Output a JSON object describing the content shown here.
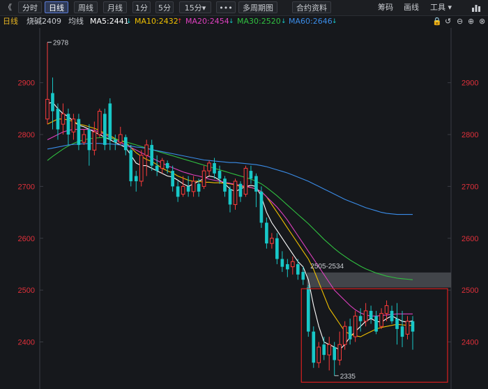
{
  "toolbar": {
    "collapse": "《",
    "tabs": [
      "分时",
      "日线",
      "周线",
      "月线",
      "1分",
      "5分",
      "15分▾"
    ],
    "active_tab": "日线",
    "more": "•••",
    "multi_period": "多周期图",
    "contract_info": "合约资料",
    "chips": "筹码",
    "draw": "画线",
    "tools": "工具 ▾"
  },
  "info": {
    "period": "日线",
    "symbol": "烧碱2409",
    "avg_line": "均线",
    "ma5": "MA5:2441",
    "ma10": "MA10:2432",
    "ma20": "MA20:2454",
    "ma30": "MA30:2520",
    "ma60": "MA60:2646",
    "ma5_dir": "↓",
    "ma10_dir": "↑",
    "ma20_dir": "↓",
    "ma30_dir": "↓",
    "ma60_dir": "↓"
  },
  "colors": {
    "up": "#ff3b3b",
    "down": "#18c8c8",
    "ma5": "#ffffff",
    "ma10": "#f0c000",
    "ma20": "#e040c0",
    "ma30": "#30c040",
    "ma60": "#3a8ce8",
    "axis_label": "#e0303a",
    "annotation": "#c9ccd1",
    "box": "#d82020"
  },
  "chart_data": {
    "type": "candlestick",
    "y_ticks": [
      2400,
      2500,
      2600,
      2700,
      2800,
      2900
    ],
    "ylim": [
      2320,
      2995
    ],
    "annotations": {
      "high_label": "2978",
      "low_label": "2335",
      "gap_label": "2505-2534",
      "gap_range": [
        2505,
        2534
      ]
    },
    "candles": [
      [
        2830,
        2868,
        2820,
        2978
      ],
      [
        2880,
        2845,
        2810,
        2910
      ],
      [
        2850,
        2810,
        2790,
        2860
      ],
      [
        2820,
        2840,
        2800,
        2860
      ],
      [
        2840,
        2800,
        2780,
        2850
      ],
      [
        2805,
        2830,
        2790,
        2840
      ],
      [
        2830,
        2780,
        2770,
        2840
      ],
      [
        2785,
        2800,
        2780,
        2810
      ],
      [
        2810,
        2770,
        2740,
        2820
      ],
      [
        2770,
        2805,
        2760,
        2825
      ],
      [
        2800,
        2845,
        2795,
        2850
      ],
      [
        2840,
        2780,
        2770,
        2850
      ],
      [
        2860,
        2790,
        2770,
        2870
      ],
      [
        2790,
        2785,
        2770,
        2800
      ],
      [
        2785,
        2800,
        2780,
        2815
      ],
      [
        2795,
        2770,
        2760,
        2800
      ],
      [
        2770,
        2710,
        2700,
        2780
      ],
      [
        2720,
        2710,
        2690,
        2730
      ],
      [
        2710,
        2760,
        2700,
        2770
      ],
      [
        2760,
        2780,
        2720,
        2790
      ],
      [
        2780,
        2740,
        2730,
        2790
      ],
      [
        2740,
        2730,
        2720,
        2760
      ],
      [
        2735,
        2750,
        2725,
        2755
      ],
      [
        2745,
        2735,
        2725,
        2750
      ],
      [
        2730,
        2700,
        2690,
        2740
      ],
      [
        2700,
        2680,
        2670,
        2710
      ],
      [
        2685,
        2700,
        2680,
        2720
      ],
      [
        2700,
        2690,
        2680,
        2720
      ],
      [
        2690,
        2710,
        2680,
        2720
      ],
      [
        2705,
        2690,
        2680,
        2715
      ],
      [
        2700,
        2730,
        2695,
        2740
      ],
      [
        2730,
        2745,
        2720,
        2750
      ],
      [
        2745,
        2725,
        2715,
        2755
      ],
      [
        2730,
        2715,
        2705,
        2740
      ],
      [
        2715,
        2690,
        2680,
        2720
      ],
      [
        2695,
        2665,
        2650,
        2700
      ],
      [
        2665,
        2710,
        2655,
        2715
      ],
      [
        2705,
        2680,
        2670,
        2710
      ],
      [
        2685,
        2735,
        2680,
        2740
      ],
      [
        2730,
        2715,
        2705,
        2740
      ],
      [
        2720,
        2690,
        2660,
        2725
      ],
      [
        2690,
        2630,
        2620,
        2700
      ],
      [
        2630,
        2590,
        2580,
        2640
      ],
      [
        2590,
        2600,
        2580,
        2610
      ],
      [
        2600,
        2560,
        2550,
        2610
      ],
      [
        2560,
        2545,
        2535,
        2575
      ],
      [
        2550,
        2540,
        2525,
        2560
      ],
      [
        2545,
        2555,
        2530,
        2565
      ],
      [
        2550,
        2530,
        2520,
        2560
      ],
      [
        2535,
        2520,
        2510,
        2545
      ],
      [
        2505,
        2420,
        2410,
        2510
      ],
      [
        2420,
        2360,
        2350,
        2430
      ],
      [
        2360,
        2390,
        2350,
        2400
      ],
      [
        2395,
        2375,
        2365,
        2410
      ],
      [
        2375,
        2395,
        2345,
        2410
      ],
      [
        2390,
        2365,
        2335,
        2400
      ],
      [
        2365,
        2395,
        2355,
        2420
      ],
      [
        2395,
        2430,
        2385,
        2440
      ],
      [
        2430,
        2405,
        2395,
        2445
      ],
      [
        2410,
        2450,
        2400,
        2460
      ],
      [
        2450,
        2440,
        2420,
        2465
      ],
      [
        2440,
        2460,
        2430,
        2475
      ],
      [
        2460,
        2445,
        2435,
        2470
      ],
      [
        2450,
        2420,
        2415,
        2460
      ],
      [
        2430,
        2455,
        2425,
        2465
      ],
      [
        2455,
        2470,
        2440,
        2480
      ],
      [
        2460,
        2440,
        2435,
        2470
      ],
      [
        2445,
        2425,
        2395,
        2475
      ],
      [
        2430,
        2410,
        2390,
        2460
      ],
      [
        2415,
        2440,
        2405,
        2450
      ],
      [
        2440,
        2420,
        2385,
        2450
      ]
    ],
    "ma_series": {
      "MA5": [
        2860,
        2862,
        2850,
        2840,
        2835,
        2825,
        2818,
        2815,
        2810,
        2805,
        2800,
        2795,
        2790,
        2785,
        2780,
        2775,
        2760,
        2745,
        2740,
        2740,
        2735,
        2730,
        2725,
        2720,
        2718,
        2712,
        2705,
        2700,
        2705,
        2710,
        2715,
        2720,
        2718,
        2712,
        2705,
        2695,
        2690,
        2695,
        2700,
        2702,
        2700,
        2680,
        2650,
        2630,
        2615,
        2600,
        2585,
        2570,
        2555,
        2545,
        2520,
        2470,
        2430,
        2400,
        2395,
        2390,
        2385,
        2395,
        2410,
        2420,
        2430,
        2440,
        2445,
        2440,
        2438,
        2445,
        2450,
        2445,
        2440,
        2438,
        2441
      ],
      "MA10": [
        2820,
        2825,
        2830,
        2830,
        2828,
        2825,
        2820,
        2818,
        2815,
        2812,
        2808,
        2802,
        2798,
        2792,
        2788,
        2785,
        2775,
        2765,
        2758,
        2752,
        2748,
        2742,
        2735,
        2730,
        2726,
        2720,
        2716,
        2712,
        2710,
        2710,
        2708,
        2708,
        2707,
        2707,
        2706,
        2705,
        2703,
        2700,
        2700,
        2698,
        2695,
        2690,
        2680,
        2665,
        2650,
        2635,
        2620,
        2605,
        2590,
        2575,
        2560,
        2540,
        2515,
        2490,
        2465,
        2450,
        2435,
        2420,
        2415,
        2412,
        2410,
        2415,
        2420,
        2425,
        2428,
        2430,
        2432,
        2434,
        2433,
        2432,
        2432
      ],
      "MA20": [
        2790,
        2795,
        2800,
        2805,
        2808,
        2810,
        2810,
        2810,
        2810,
        2808,
        2805,
        2800,
        2795,
        2790,
        2785,
        2780,
        2775,
        2770,
        2765,
        2760,
        2755,
        2750,
        2745,
        2740,
        2736,
        2732,
        2728,
        2725,
        2722,
        2720,
        2717,
        2714,
        2712,
        2710,
        2708,
        2706,
        2704,
        2702,
        2700,
        2698,
        2695,
        2690,
        2680,
        2670,
        2660,
        2648,
        2635,
        2620,
        2605,
        2590,
        2575,
        2560,
        2545,
        2530,
        2515,
        2500,
        2490,
        2480,
        2470,
        2462,
        2456,
        2452,
        2450,
        2450,
        2451,
        2452,
        2453,
        2454,
        2454,
        2454,
        2454
      ],
      "MA30": [
        2750,
        2758,
        2765,
        2772,
        2778,
        2783,
        2787,
        2790,
        2792,
        2793,
        2794,
        2794,
        2793,
        2791,
        2789,
        2786,
        2783,
        2780,
        2777,
        2774,
        2771,
        2768,
        2765,
        2762,
        2759,
        2756,
        2753,
        2750,
        2747,
        2744,
        2741,
        2738,
        2735,
        2732,
        2729,
        2726,
        2723,
        2720,
        2717,
        2714,
        2710,
        2705,
        2698,
        2690,
        2682,
        2673,
        2664,
        2655,
        2646,
        2637,
        2628,
        2618,
        2608,
        2598,
        2589,
        2580,
        2572,
        2565,
        2558,
        2552,
        2546,
        2541,
        2537,
        2533,
        2530,
        2527,
        2525,
        2523,
        2522,
        2521,
        2520
      ],
      "MA60": [
        2772,
        2774,
        2776,
        2778,
        2780,
        2781,
        2782,
        2782,
        2783,
        2783,
        2783,
        2782,
        2782,
        2781,
        2780,
        2779,
        2778,
        2776,
        2775,
        2773,
        2771,
        2769,
        2767,
        2765,
        2763,
        2761,
        2759,
        2757,
        2755,
        2753,
        2751,
        2750,
        2749,
        2748,
        2747,
        2746,
        2746,
        2745,
        2744,
        2743,
        2742,
        2740,
        2738,
        2735,
        2732,
        2729,
        2726,
        2722,
        2718,
        2714,
        2710,
        2705,
        2700,
        2695,
        2690,
        2685,
        2680,
        2675,
        2671,
        2667,
        2663,
        2659,
        2656,
        2653,
        2650,
        2648,
        2647,
        2646,
        2646,
        2646,
        2646
      ]
    }
  }
}
